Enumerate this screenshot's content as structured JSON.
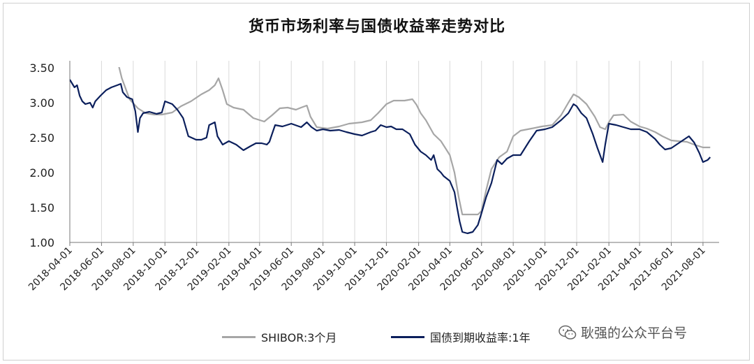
{
  "chart_data": {
    "type": "line",
    "title": "货币市场利率与国债收益率走势对比",
    "xlabel": "",
    "ylabel": "",
    "ylim": [
      1.0,
      3.5
    ],
    "yticks": [
      "1.00",
      "1.50",
      "2.00",
      "2.50",
      "3.00",
      "3.50"
    ],
    "x_tick_labels": [
      "2018-04-01",
      "2018-06-01",
      "2018-08-01",
      "2018-10-01",
      "2018-12-01",
      "2019-02-01",
      "2019-04-01",
      "2019-06-01",
      "2019-08-01",
      "2019-10-01",
      "2019-12-01",
      "2020-02-01",
      "2020-04-01",
      "2020-06-01",
      "2020-08-01",
      "2020-10-01",
      "2020-12-01",
      "2021-02-01",
      "2021-04-01",
      "2021-06-01",
      "2021-08-01"
    ],
    "grid": "vertical",
    "legend_position": "bottom",
    "series": [
      {
        "name": "SHIBOR:3个月",
        "color": "#a6a6a6",
        "points": [
          [
            "2018-07-01",
            3.62
          ],
          [
            "2018-07-10",
            3.35
          ],
          [
            "2018-07-25",
            3.05
          ],
          [
            "2018-08-10",
            2.92
          ],
          [
            "2018-08-25",
            2.85
          ],
          [
            "2018-09-10",
            2.83
          ],
          [
            "2018-09-25",
            2.83
          ],
          [
            "2018-10-15",
            2.86
          ],
          [
            "2018-11-01",
            2.95
          ],
          [
            "2018-11-20",
            3.02
          ],
          [
            "2018-12-10",
            3.12
          ],
          [
            "2018-12-25",
            3.18
          ],
          [
            "2019-01-05",
            3.25
          ],
          [
            "2019-01-12",
            3.35
          ],
          [
            "2019-01-20",
            3.18
          ],
          [
            "2019-01-28",
            2.98
          ],
          [
            "2019-02-10",
            2.93
          ],
          [
            "2019-03-01",
            2.9
          ],
          [
            "2019-03-20",
            2.78
          ],
          [
            "2019-04-10",
            2.73
          ],
          [
            "2019-04-25",
            2.82
          ],
          [
            "2019-05-10",
            2.92
          ],
          [
            "2019-05-25",
            2.93
          ],
          [
            "2019-06-10",
            2.9
          ],
          [
            "2019-06-20",
            2.93
          ],
          [
            "2019-07-01",
            2.96
          ],
          [
            "2019-07-08",
            2.8
          ],
          [
            "2019-07-20",
            2.65
          ],
          [
            "2019-08-10",
            2.63
          ],
          [
            "2019-09-01",
            2.66
          ],
          [
            "2019-09-20",
            2.7
          ],
          [
            "2019-10-15",
            2.72
          ],
          [
            "2019-11-01",
            2.75
          ],
          [
            "2019-11-15",
            2.85
          ],
          [
            "2019-12-01",
            2.98
          ],
          [
            "2019-12-15",
            3.03
          ],
          [
            "2020-01-05",
            3.03
          ],
          [
            "2020-01-20",
            3.05
          ],
          [
            "2020-01-28",
            2.97
          ],
          [
            "2020-02-05",
            2.85
          ],
          [
            "2020-02-15",
            2.75
          ],
          [
            "2020-03-01",
            2.55
          ],
          [
            "2020-03-15",
            2.45
          ],
          [
            "2020-04-01",
            2.25
          ],
          [
            "2020-04-10",
            2.0
          ],
          [
            "2020-04-18",
            1.65
          ],
          [
            "2020-04-25",
            1.4
          ],
          [
            "2020-05-10",
            1.4
          ],
          [
            "2020-05-25",
            1.4
          ],
          [
            "2020-06-01",
            1.45
          ],
          [
            "2020-06-10",
            1.75
          ],
          [
            "2020-06-20",
            2.05
          ],
          [
            "2020-07-05",
            2.22
          ],
          [
            "2020-07-20",
            2.3
          ],
          [
            "2020-08-01",
            2.52
          ],
          [
            "2020-08-15",
            2.6
          ],
          [
            "2020-09-05",
            2.63
          ],
          [
            "2020-09-25",
            2.66
          ],
          [
            "2020-10-15",
            2.68
          ],
          [
            "2020-11-01",
            2.82
          ],
          [
            "2020-11-15",
            3.0
          ],
          [
            "2020-11-25",
            3.12
          ],
          [
            "2020-12-05",
            3.08
          ],
          [
            "2020-12-20",
            2.98
          ],
          [
            "2021-01-05",
            2.8
          ],
          [
            "2021-01-15",
            2.65
          ],
          [
            "2021-01-25",
            2.62
          ],
          [
            "2021-02-01",
            2.72
          ],
          [
            "2021-02-10",
            2.82
          ],
          [
            "2021-03-01",
            2.83
          ],
          [
            "2021-03-15",
            2.73
          ],
          [
            "2021-04-01",
            2.66
          ],
          [
            "2021-04-15",
            2.63
          ],
          [
            "2021-05-01",
            2.58
          ],
          [
            "2021-05-15",
            2.52
          ],
          [
            "2021-06-01",
            2.46
          ],
          [
            "2021-06-15",
            2.45
          ],
          [
            "2021-07-01",
            2.44
          ],
          [
            "2021-07-15",
            2.4
          ],
          [
            "2021-08-01",
            2.36
          ],
          [
            "2021-08-15",
            2.36
          ]
        ]
      },
      {
        "name": "国债到期收益率:1年",
        "color": "#0b1f5c",
        "points": [
          [
            "2018-04-01",
            3.33
          ],
          [
            "2018-04-05",
            3.28
          ],
          [
            "2018-04-10",
            3.22
          ],
          [
            "2018-04-15",
            3.25
          ],
          [
            "2018-04-20",
            3.1
          ],
          [
            "2018-04-25",
            3.02
          ],
          [
            "2018-05-01",
            2.98
          ],
          [
            "2018-05-10",
            3.0
          ],
          [
            "2018-05-15",
            2.93
          ],
          [
            "2018-05-20",
            3.02
          ],
          [
            "2018-05-30",
            3.1
          ],
          [
            "2018-06-10",
            3.18
          ],
          [
            "2018-06-20",
            3.22
          ],
          [
            "2018-07-01",
            3.25
          ],
          [
            "2018-07-08",
            3.27
          ],
          [
            "2018-07-12",
            3.15
          ],
          [
            "2018-07-20",
            3.08
          ],
          [
            "2018-07-30",
            3.05
          ],
          [
            "2018-08-05",
            2.88
          ],
          [
            "2018-08-10",
            2.58
          ],
          [
            "2018-08-14",
            2.78
          ],
          [
            "2018-08-20",
            2.85
          ],
          [
            "2018-09-01",
            2.87
          ],
          [
            "2018-09-15",
            2.84
          ],
          [
            "2018-09-25",
            2.86
          ],
          [
            "2018-10-01",
            3.02
          ],
          [
            "2018-10-15",
            2.98
          ],
          [
            "2018-10-25",
            2.9
          ],
          [
            "2018-11-05",
            2.78
          ],
          [
            "2018-11-15",
            2.52
          ],
          [
            "2018-11-30",
            2.47
          ],
          [
            "2018-12-10",
            2.47
          ],
          [
            "2018-12-20",
            2.5
          ],
          [
            "2018-12-25",
            2.68
          ],
          [
            "2019-01-05",
            2.72
          ],
          [
            "2019-01-10",
            2.52
          ],
          [
            "2019-01-20",
            2.4
          ],
          [
            "2019-02-01",
            2.45
          ],
          [
            "2019-02-15",
            2.4
          ],
          [
            "2019-03-01",
            2.32
          ],
          [
            "2019-03-15",
            2.38
          ],
          [
            "2019-03-25",
            2.42
          ],
          [
            "2019-04-05",
            2.42
          ],
          [
            "2019-04-15",
            2.4
          ],
          [
            "2019-04-20",
            2.44
          ],
          [
            "2019-04-25",
            2.55
          ],
          [
            "2019-05-01",
            2.68
          ],
          [
            "2019-05-15",
            2.66
          ],
          [
            "2019-06-01",
            2.7
          ],
          [
            "2019-06-20",
            2.65
          ],
          [
            "2019-07-01",
            2.72
          ],
          [
            "2019-07-10",
            2.65
          ],
          [
            "2019-07-20",
            2.6
          ],
          [
            "2019-08-01",
            2.62
          ],
          [
            "2019-08-15",
            2.6
          ],
          [
            "2019-09-01",
            2.61
          ],
          [
            "2019-09-15",
            2.58
          ],
          [
            "2019-10-01",
            2.55
          ],
          [
            "2019-10-15",
            2.53
          ],
          [
            "2019-11-01",
            2.58
          ],
          [
            "2019-11-10",
            2.6
          ],
          [
            "2019-11-20",
            2.68
          ],
          [
            "2019-12-01",
            2.65
          ],
          [
            "2019-12-10",
            2.66
          ],
          [
            "2019-12-20",
            2.62
          ],
          [
            "2020-01-01",
            2.62
          ],
          [
            "2020-01-15",
            2.55
          ],
          [
            "2020-01-25",
            2.4
          ],
          [
            "2020-02-05",
            2.3
          ],
          [
            "2020-02-15",
            2.25
          ],
          [
            "2020-02-25",
            2.18
          ],
          [
            "2020-03-01",
            2.25
          ],
          [
            "2020-03-08",
            2.05
          ],
          [
            "2020-03-15",
            2.0
          ],
          [
            "2020-03-20",
            1.95
          ],
          [
            "2020-04-01",
            1.88
          ],
          [
            "2020-04-10",
            1.72
          ],
          [
            "2020-04-15",
            1.5
          ],
          [
            "2020-04-20",
            1.3
          ],
          [
            "2020-04-25",
            1.15
          ],
          [
            "2020-05-05",
            1.13
          ],
          [
            "2020-05-15",
            1.15
          ],
          [
            "2020-05-25",
            1.25
          ],
          [
            "2020-06-01",
            1.42
          ],
          [
            "2020-06-10",
            1.65
          ],
          [
            "2020-06-20",
            1.85
          ],
          [
            "2020-07-01",
            2.18
          ],
          [
            "2020-07-10",
            2.12
          ],
          [
            "2020-07-20",
            2.2
          ],
          [
            "2020-08-01",
            2.25
          ],
          [
            "2020-08-15",
            2.25
          ],
          [
            "2020-09-01",
            2.45
          ],
          [
            "2020-09-15",
            2.6
          ],
          [
            "2020-10-01",
            2.62
          ],
          [
            "2020-10-15",
            2.65
          ],
          [
            "2020-11-01",
            2.75
          ],
          [
            "2020-11-15",
            2.85
          ],
          [
            "2020-11-25",
            2.98
          ],
          [
            "2020-12-01",
            2.95
          ],
          [
            "2020-12-10",
            2.85
          ],
          [
            "2020-12-20",
            2.78
          ],
          [
            "2021-01-01",
            2.55
          ],
          [
            "2021-01-10",
            2.35
          ],
          [
            "2021-01-20",
            2.15
          ],
          [
            "2021-01-25",
            2.4
          ],
          [
            "2021-02-01",
            2.7
          ],
          [
            "2021-02-15",
            2.68
          ],
          [
            "2021-03-01",
            2.65
          ],
          [
            "2021-03-15",
            2.62
          ],
          [
            "2021-04-01",
            2.62
          ],
          [
            "2021-04-15",
            2.58
          ],
          [
            "2021-05-01",
            2.48
          ],
          [
            "2021-05-10",
            2.4
          ],
          [
            "2021-05-20",
            2.33
          ],
          [
            "2021-06-01",
            2.35
          ],
          [
            "2021-06-15",
            2.42
          ],
          [
            "2021-07-01",
            2.5
          ],
          [
            "2021-07-05",
            2.52
          ],
          [
            "2021-07-15",
            2.43
          ],
          [
            "2021-07-25",
            2.28
          ],
          [
            "2021-08-01",
            2.15
          ],
          [
            "2021-08-10",
            2.18
          ],
          [
            "2021-08-15",
            2.22
          ]
        ]
      }
    ]
  },
  "watermark": "耿强的公众平台号",
  "watermark_icon": "wechat-icon"
}
